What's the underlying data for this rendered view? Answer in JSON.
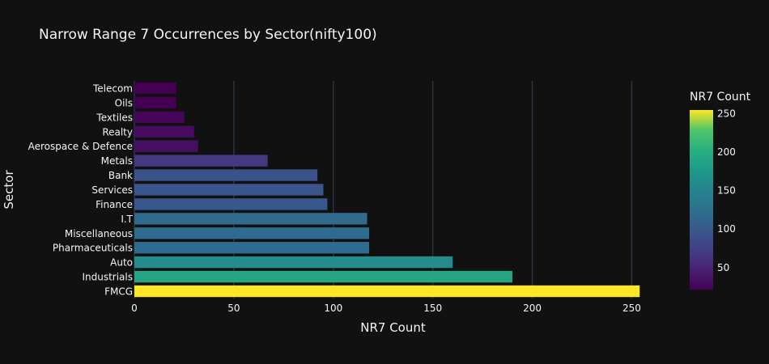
{
  "chart_data": {
    "type": "bar",
    "orientation": "horizontal",
    "title": "Narrow Range 7 Occurrences by Sector(nifty100)",
    "xlabel": "NR7 Count",
    "ylabel": "Sector",
    "xlim": [
      0,
      260
    ],
    "x_ticks": [
      "0",
      "50",
      "100",
      "150",
      "200",
      "250"
    ],
    "grid": true,
    "categories": [
      "Telecom",
      "Oils",
      "Textiles",
      "Realty",
      "Aerospace & Defence",
      "Metals",
      "Bank",
      "Services",
      "Finance",
      "I.T",
      "Miscellaneous",
      "Pharmaceuticals",
      "Auto",
      "Industrials",
      "FMCG"
    ],
    "values": [
      21,
      21,
      25,
      30,
      32,
      67,
      92,
      95,
      97,
      117,
      118,
      118,
      160,
      190,
      254
    ],
    "colorscale": "Viridis",
    "colorbar": {
      "title": "NR7 Count",
      "range": [
        21,
        254
      ],
      "ticks": [
        "50",
        "100",
        "150",
        "200",
        "250"
      ]
    }
  }
}
